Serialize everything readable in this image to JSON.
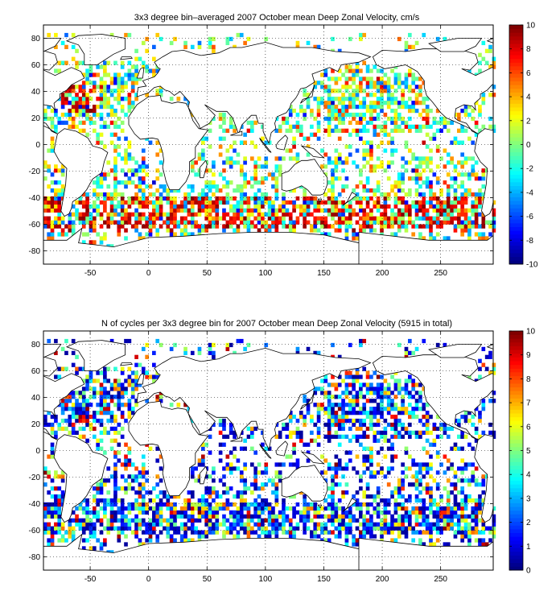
{
  "chart_data": [
    {
      "type": "heatmap",
      "title": "3x3 degree bin–averaged 2007 October mean Deep Zonal Velocity, cm/s",
      "xlim": [
        -90,
        295
      ],
      "ylim": [
        -90,
        90
      ],
      "xticks": [
        -50,
        0,
        50,
        100,
        150,
        200,
        250
      ],
      "yticks": [
        80,
        60,
        40,
        20,
        0,
        -20,
        -40,
        -60,
        -80
      ],
      "bin_size_deg": 3,
      "grid": true,
      "colormap": "jet",
      "colorbar": {
        "min": -10,
        "max": 10,
        "ticks": [
          10,
          8,
          6,
          4,
          2,
          0,
          -2,
          -4,
          -6,
          -8,
          -10
        ],
        "placement": "right"
      }
    },
    {
      "type": "heatmap",
      "title": "N of cycles per 3x3 degree bin for 2007 October mean Deep Zonal Velocity (5915 in total)",
      "xlim": [
        -90,
        295
      ],
      "ylim": [
        -90,
        90
      ],
      "xticks": [
        -50,
        0,
        50,
        100,
        150,
        200,
        250
      ],
      "yticks": [
        80,
        60,
        40,
        20,
        0,
        -20,
        -40,
        -60,
        -80
      ],
      "bin_size_deg": 3,
      "grid": true,
      "colormap": "jet",
      "colorbar": {
        "min": 0,
        "max": 10,
        "ticks": [
          10,
          9,
          8,
          7,
          6,
          5,
          4,
          3,
          2,
          1,
          0
        ],
        "placement": "right"
      }
    }
  ]
}
